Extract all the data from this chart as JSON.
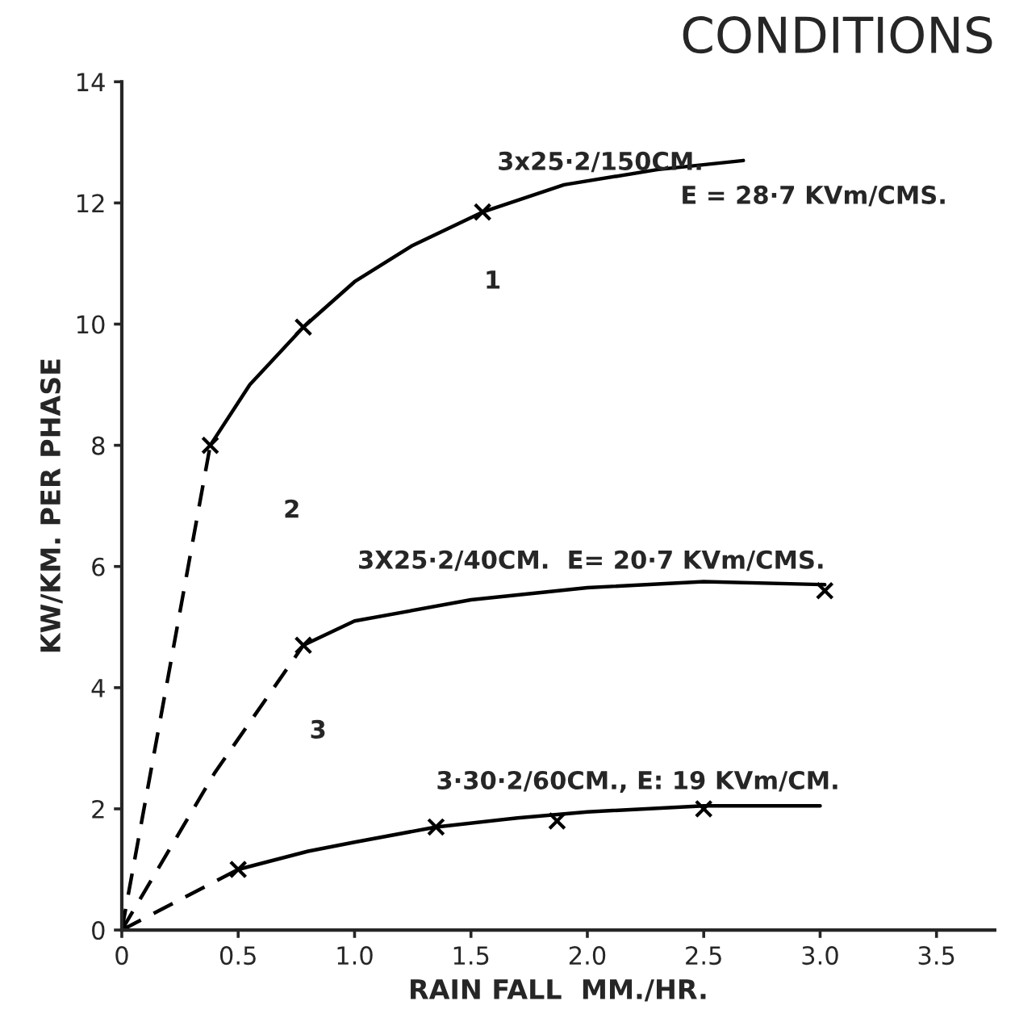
{
  "chart_data": {
    "type": "line",
    "title": "CONDITIONS",
    "xlabel": "RAIN FALL  MM./HR.",
    "ylabel": "KW/KM. PER PHASE",
    "xlim": [
      0,
      3.75
    ],
    "ylim": [
      0,
      14
    ],
    "xticks": [
      0,
      0.5,
      {
        "value": 1,
        "label": "1.0"
      },
      1.5,
      {
        "value": 2,
        "label": "2.0"
      },
      2.5,
      {
        "value": 3,
        "label": "3.0"
      },
      3.5
    ],
    "yticks": [
      0,
      2,
      4,
      6,
      8,
      10,
      12,
      14
    ],
    "grid": false,
    "legend": false,
    "series": [
      {
        "line_style": "dashed",
        "marker": "none",
        "color": "#000000",
        "x": [
          0,
          0.2,
          0.38
        ],
        "values": [
          0,
          4.2,
          8.0
        ]
      },
      {
        "line_style": "solid",
        "marker": "none",
        "color": "#000000",
        "x": [
          0.38,
          0.55,
          0.78,
          1.0,
          1.25,
          1.55,
          1.9,
          2.3,
          2.67
        ],
        "values": [
          8.0,
          9.0,
          9.95,
          10.7,
          11.3,
          11.85,
          12.3,
          12.55,
          12.7
        ]
      },
      {
        "type": "scatter",
        "marker": "cross",
        "color": "#000000",
        "x": [
          0.38,
          0.78,
          1.55
        ],
        "values": [
          8.0,
          9.95,
          11.85
        ]
      },
      {
        "line_style": "dashed",
        "marker": "none",
        "color": "#000000",
        "x": [
          0,
          0.4,
          0.78
        ],
        "values": [
          0,
          2.6,
          4.7
        ]
      },
      {
        "line_style": "solid",
        "marker": "none",
        "color": "#000000",
        "x": [
          0.78,
          1.0,
          1.5,
          2.0,
          2.5,
          3.02
        ],
        "values": [
          4.7,
          5.1,
          5.45,
          5.65,
          5.75,
          5.7
        ]
      },
      {
        "type": "scatter",
        "marker": "cross",
        "color": "#000000",
        "x": [
          0.78,
          3.02
        ],
        "values": [
          4.7,
          5.6
        ]
      },
      {
        "line_style": "dashed",
        "marker": "none",
        "color": "#000000",
        "x": [
          0,
          0.5
        ],
        "values": [
          0,
          1.0
        ]
      },
      {
        "line_style": "solid",
        "marker": "none",
        "color": "#000000",
        "x": [
          0.5,
          0.8,
          1.0,
          1.35,
          1.7,
          2.0,
          2.5,
          3.0
        ],
        "values": [
          1.0,
          1.3,
          1.45,
          1.7,
          1.85,
          1.95,
          2.05,
          2.05
        ]
      },
      {
        "type": "scatter",
        "marker": "cross",
        "color": "#000000",
        "x": [
          0.5,
          1.35,
          1.87,
          2.5
        ],
        "values": [
          1.0,
          1.7,
          1.8,
          2.0
        ]
      }
    ],
    "annotations": [
      "3x25·2/150CM.",
      "E = 28·7 KVm/CMS.",
      "3X25·2/40CM.  E= 20·7 KVm/CMS.",
      "3·30·2/60CM., E: 19 KVm/CM.",
      "1",
      "2",
      "3"
    ]
  }
}
